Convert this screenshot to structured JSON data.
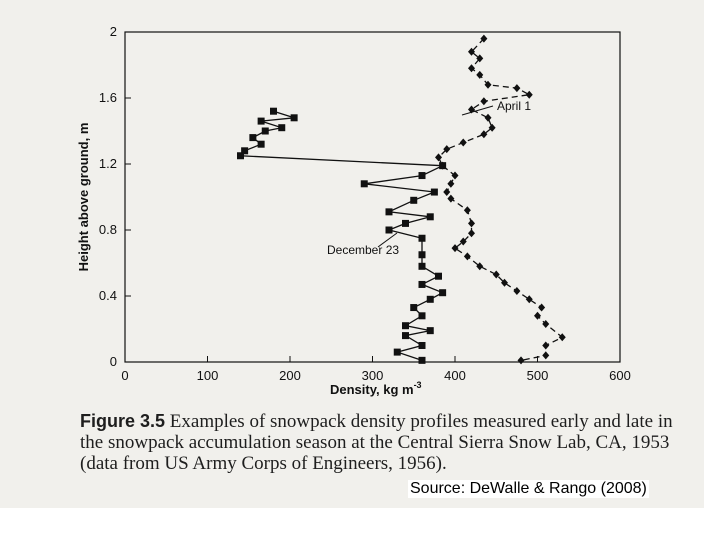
{
  "chart_data": {
    "type": "line",
    "xlabel": "Density, kg m",
    "xlabel_sup": "-3",
    "ylabel": "Height above ground, m",
    "xlim": [
      0,
      600
    ],
    "ylim": [
      0,
      2
    ],
    "xticks": [
      "0",
      "100",
      "200",
      "300",
      "400",
      "500",
      "600"
    ],
    "yticks": [
      "0",
      "0.4",
      "0.8",
      "1.2",
      "1.6",
      "2"
    ],
    "grid": false,
    "annotations": [
      "April 1",
      "December 23"
    ],
    "series": [
      {
        "label_ref": "December 23",
        "line_style": "solid",
        "marker": "square",
        "points": [
          [
            180,
            1.52
          ],
          [
            205,
            1.48
          ],
          [
            165,
            1.46
          ],
          [
            190,
            1.42
          ],
          [
            170,
            1.4
          ],
          [
            155,
            1.36
          ],
          [
            165,
            1.32
          ],
          [
            145,
            1.28
          ],
          [
            140,
            1.25
          ],
          [
            385,
            1.19
          ],
          [
            360,
            1.13
          ],
          [
            290,
            1.08
          ],
          [
            375,
            1.03
          ],
          [
            350,
            0.98
          ],
          [
            320,
            0.91
          ],
          [
            370,
            0.88
          ],
          [
            340,
            0.84
          ],
          [
            320,
            0.8
          ],
          [
            360,
            0.75
          ],
          [
            360,
            0.65
          ],
          [
            360,
            0.58
          ],
          [
            380,
            0.52
          ],
          [
            360,
            0.47
          ],
          [
            385,
            0.42
          ],
          [
            370,
            0.38
          ],
          [
            350,
            0.33
          ],
          [
            360,
            0.28
          ],
          [
            340,
            0.22
          ],
          [
            370,
            0.19
          ],
          [
            340,
            0.16
          ],
          [
            360,
            0.1
          ],
          [
            330,
            0.06
          ],
          [
            360,
            0.01
          ]
        ]
      },
      {
        "label_ref": "April 1",
        "line_style": "dashed",
        "marker": "diamond",
        "points": [
          [
            435,
            1.96
          ],
          [
            420,
            1.88
          ],
          [
            430,
            1.84
          ],
          [
            420,
            1.78
          ],
          [
            430,
            1.74
          ],
          [
            440,
            1.68
          ],
          [
            475,
            1.66
          ],
          [
            490,
            1.62
          ],
          [
            435,
            1.58
          ],
          [
            420,
            1.53
          ],
          [
            440,
            1.48
          ],
          [
            445,
            1.42
          ],
          [
            435,
            1.38
          ],
          [
            410,
            1.33
          ],
          [
            390,
            1.29
          ],
          [
            380,
            1.24
          ],
          [
            385,
            1.19
          ],
          [
            400,
            1.13
          ],
          [
            395,
            1.08
          ],
          [
            390,
            1.03
          ],
          [
            395,
            0.99
          ],
          [
            415,
            0.92
          ],
          [
            420,
            0.84
          ],
          [
            420,
            0.78
          ],
          [
            410,
            0.73
          ],
          [
            400,
            0.69
          ],
          [
            415,
            0.64
          ],
          [
            430,
            0.58
          ],
          [
            450,
            0.53
          ],
          [
            460,
            0.48
          ],
          [
            475,
            0.43
          ],
          [
            490,
            0.38
          ],
          [
            505,
            0.33
          ],
          [
            500,
            0.28
          ],
          [
            510,
            0.23
          ],
          [
            530,
            0.15
          ],
          [
            510,
            0.1
          ],
          [
            510,
            0.04
          ],
          [
            480,
            0.01
          ]
        ]
      }
    ]
  },
  "caption": {
    "figure_label": "Figure 3.5",
    "text": "Examples of snowpack density profiles measured early and late in the snowpack accumulation season at the Central Sierra Snow Lab, CA, 1953 (data from US Army Corps of Engineers, 1956)."
  },
  "source": "Source: DeWalle & Rango (2008)"
}
